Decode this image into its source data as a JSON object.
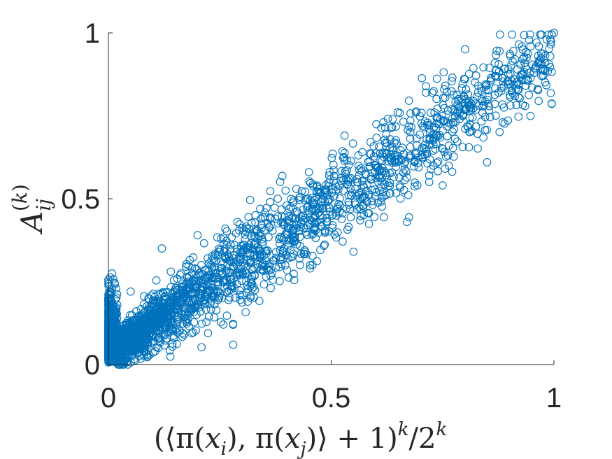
{
  "chart_data": {
    "type": "scatter",
    "title": "",
    "marker": "open-circle",
    "color": "#0072BD",
    "xlim": [
      0,
      1
    ],
    "ylim": [
      0,
      1
    ],
    "xticks": [
      0,
      0.5,
      1
    ],
    "yticks": [
      0,
      0.5,
      1
    ],
    "xtick_labels": [
      "0",
      "0.5",
      "1"
    ],
    "ytick_labels": [
      "0",
      "0.5",
      "1"
    ],
    "grid": false,
    "xlabel": "(⟨π(x_i), π(x_j)⟩ + 1)^k / 2^k",
    "ylabel": "A_ij^(k)",
    "n_points": 3000,
    "trend": {
      "slope": 0.92,
      "intercept": 0.03
    },
    "points": [
      [
        0.0,
        0.02
      ],
      [
        0.0,
        0.08
      ],
      [
        0.0,
        0.15
      ],
      [
        0.0,
        0.2
      ],
      [
        0.0,
        0.25
      ],
      [
        0.01,
        0.05
      ],
      [
        0.01,
        0.12
      ],
      [
        0.02,
        0.18
      ],
      [
        0.03,
        0.1
      ],
      [
        0.05,
        0.22
      ],
      [
        0.09,
        0.2
      ],
      [
        0.12,
        0.35
      ],
      [
        0.14,
        0.28
      ],
      [
        0.18,
        0.25
      ],
      [
        0.2,
        0.39
      ],
      [
        0.28,
        0.06
      ],
      [
        0.3,
        0.28
      ],
      [
        0.33,
        0.45
      ],
      [
        0.38,
        0.5
      ],
      [
        0.4,
        0.33
      ],
      [
        0.45,
        0.58
      ],
      [
        0.46,
        0.44
      ],
      [
        0.53,
        0.69
      ],
      [
        0.55,
        0.34
      ],
      [
        0.57,
        0.64
      ],
      [
        0.6,
        0.6
      ],
      [
        0.67,
        0.43
      ],
      [
        0.69,
        0.76
      ],
      [
        0.72,
        0.57
      ],
      [
        0.75,
        0.54
      ],
      [
        0.77,
        0.77
      ],
      [
        0.8,
        0.86
      ],
      [
        0.85,
        0.61
      ],
      [
        0.87,
        0.87
      ],
      [
        0.93,
        0.95
      ],
      [
        0.96,
        0.9
      ],
      [
        1.0,
        1.0
      ]
    ]
  }
}
